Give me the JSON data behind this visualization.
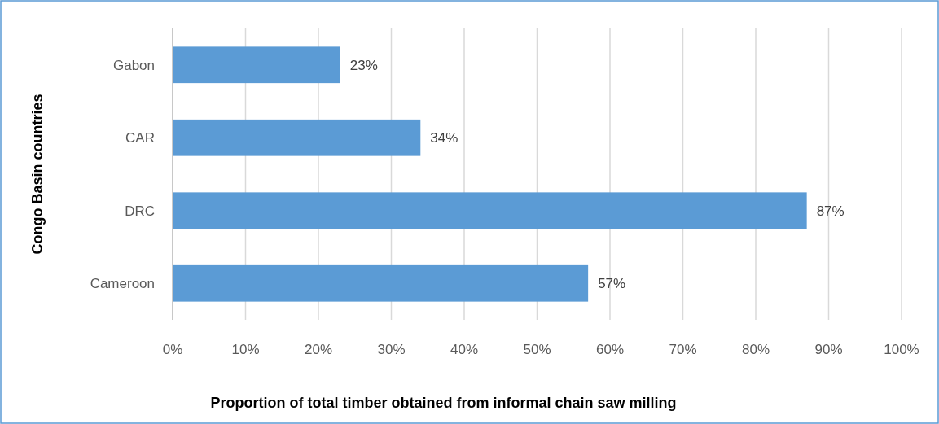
{
  "chart_data": {
    "type": "bar",
    "orientation": "horizontal",
    "xlabel": "Proportion of total timber obtained from informal chain saw milling",
    "ylabel": "Congo Basin countries",
    "categories": [
      "Gabon",
      "CAR",
      "DRC",
      "Cameroon"
    ],
    "series": [
      {
        "color": "#5b9bd5",
        "values": [
          23,
          34,
          87,
          57
        ],
        "value_labels": [
          "23%",
          "34%",
          "87%",
          "57%"
        ]
      }
    ],
    "xlim": [
      0,
      100
    ],
    "xticks": [
      {
        "value": 0,
        "label": "0%"
      },
      {
        "value": 10,
        "label": "10%"
      },
      {
        "value": 20,
        "label": "20%"
      },
      {
        "value": 30,
        "label": "30%"
      },
      {
        "value": 40,
        "label": "40%"
      },
      {
        "value": 50,
        "label": "50%"
      },
      {
        "value": 60,
        "label": "60%"
      },
      {
        "value": 70,
        "label": "70%"
      },
      {
        "value": 80,
        "label": "80%"
      },
      {
        "value": 90,
        "label": "90%"
      },
      {
        "value": 100,
        "label": "100%"
      }
    ],
    "grid": "x"
  }
}
